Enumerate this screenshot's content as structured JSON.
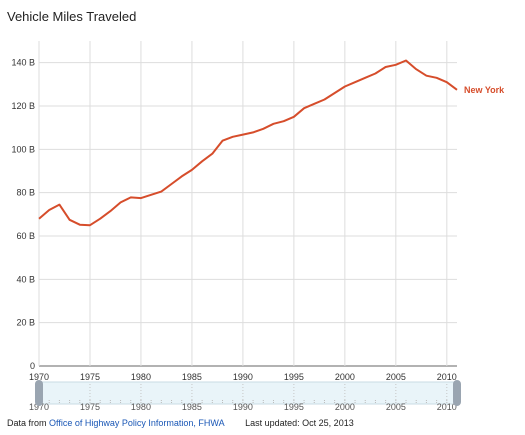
{
  "chart_data": {
    "type": "line",
    "title": "Vehicle Miles Traveled",
    "xlabel": "",
    "ylabel": "",
    "xlim": [
      1970,
      2011
    ],
    "ylim": [
      0,
      150
    ],
    "y_ticks": [
      0,
      20,
      40,
      60,
      80,
      100,
      120,
      140
    ],
    "y_tick_labels": [
      "0",
      "20 B",
      "40 B",
      "60 B",
      "80 B",
      "100 B",
      "120 B",
      "140 B"
    ],
    "x_ticks": [
      1970,
      1975,
      1980,
      1985,
      1990,
      1995,
      2000,
      2005,
      2010
    ],
    "x_tick_labels": [
      "1970",
      "1975",
      "1980",
      "1985",
      "1990",
      "1995",
      "2000",
      "2005",
      "2010"
    ],
    "grid": true,
    "legend": "right-end-label",
    "series": [
      {
        "name": "New York",
        "color": "#d64d2b",
        "x": [
          1970,
          1971,
          1972,
          1973,
          1974,
          1975,
          1976,
          1977,
          1978,
          1979,
          1980,
          1981,
          1982,
          1983,
          1984,
          1985,
          1986,
          1987,
          1988,
          1989,
          1990,
          1991,
          1992,
          1993,
          1994,
          1995,
          1996,
          1997,
          1998,
          1999,
          2000,
          2001,
          2002,
          2003,
          2004,
          2005,
          2006,
          2007,
          2008,
          2009,
          2010,
          2011
        ],
        "values": [
          68,
          72,
          74.5,
          67.5,
          65.2,
          65,
          68,
          71.5,
          75.5,
          77.8,
          77.5,
          79,
          80.5,
          84,
          87.5,
          90.5,
          94.5,
          98,
          104,
          105.8,
          106.8,
          107.8,
          109.5,
          111.8,
          113,
          115,
          119,
          121,
          123,
          126,
          129,
          131,
          133,
          135,
          138,
          139,
          141,
          137,
          134,
          133,
          131,
          127.5
        ]
      }
    ]
  },
  "range_selector": {
    "tick_labels": [
      "1970",
      "1975",
      "1980",
      "1985",
      "1990",
      "1995",
      "2000",
      "2005",
      "2010"
    ],
    "start_handle_color": "#9aa5b1",
    "end_handle_color": "#9aa5b1",
    "band_color": "#e9f4f9"
  },
  "footer": {
    "prefix": "Data from",
    "source_link": "Office of Highway Policy Information, FHWA",
    "updated": "Last updated: Oct 25, 2013"
  }
}
